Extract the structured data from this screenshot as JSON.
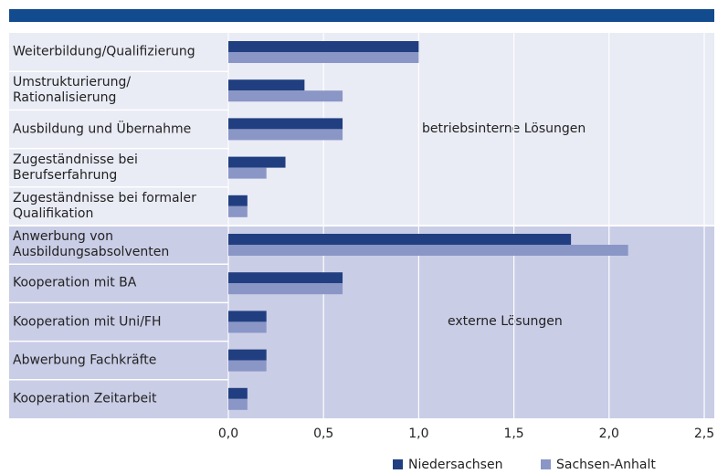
{
  "chart_data": {
    "type": "barh",
    "categories": [
      "Weiterbildung/Qualifizierung",
      "Umstrukturierung/\nRationalisierung",
      "Ausbildung und Übernahme",
      "Zugeständnisse bei\nBerufserfahrung",
      "Zugeständnisse bei formaler\nQualifikation",
      "Anwerbung von\nAusbildungsabsolventen",
      "Kooperation mit BA",
      "Kooperation mit Uni/FH",
      "Abwerbung Fachkräfte",
      "Kooperation Zeitarbeit"
    ],
    "series": [
      {
        "name": "Niedersachsen",
        "color": "#213f80",
        "values": [
          1.0,
          0.4,
          0.6,
          0.3,
          0.1,
          1.8,
          0.6,
          0.2,
          0.2,
          0.1
        ]
      },
      {
        "name": "Sachsen-Anhalt",
        "color": "#8a96c6",
        "values": [
          1.0,
          0.6,
          0.6,
          0.2,
          0.1,
          2.1,
          0.6,
          0.2,
          0.2,
          0.1
        ]
      }
    ],
    "xlim": [
      0,
      2.5
    ],
    "xticks": [
      {
        "value": 0,
        "label": "0,0"
      },
      {
        "value": 0.5,
        "label": "0,5"
      },
      {
        "value": 1,
        "label": "1,0"
      },
      {
        "value": 1.5,
        "label": "1,5"
      },
      {
        "value": 2,
        "label": "2,0"
      },
      {
        "value": 2.5,
        "label": "2,5"
      }
    ],
    "grid": true,
    "annotations": [
      "betriebsinterne Lösungen",
      "externe Lösungen"
    ]
  }
}
